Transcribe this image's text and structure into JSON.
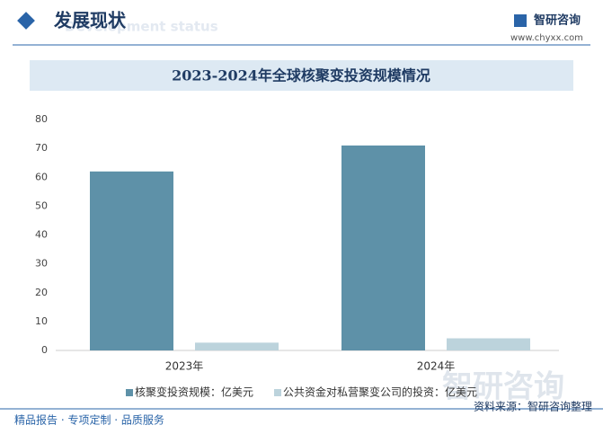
{
  "header": {
    "title": "发展现状",
    "subtitle": "Development status"
  },
  "logo": {
    "name": "智研咨询",
    "url": "www.chyxx.com"
  },
  "chart_data": {
    "type": "bar",
    "title": "2023-2024年全球核聚变投资规模情况",
    "categories": [
      "2023年",
      "2024年"
    ],
    "series": [
      {
        "name": "核聚变投资规模：亿美元",
        "color": "#5e91a8",
        "values": [
          62,
          71
        ]
      },
      {
        "name": "公共资金对私营聚变公司的投资：亿美元",
        "color": "#bcd3dc",
        "values": [
          2.7,
          4.2
        ]
      }
    ],
    "ylim": [
      0,
      80
    ],
    "yticks": [
      0,
      10,
      20,
      30,
      40,
      50,
      60,
      70,
      80
    ],
    "grid": false
  },
  "watermark": "智研咨询",
  "footer": {
    "left": "精品报告 · 专项定制 · 品质服务",
    "source": "资料来源：智研咨询整理"
  }
}
